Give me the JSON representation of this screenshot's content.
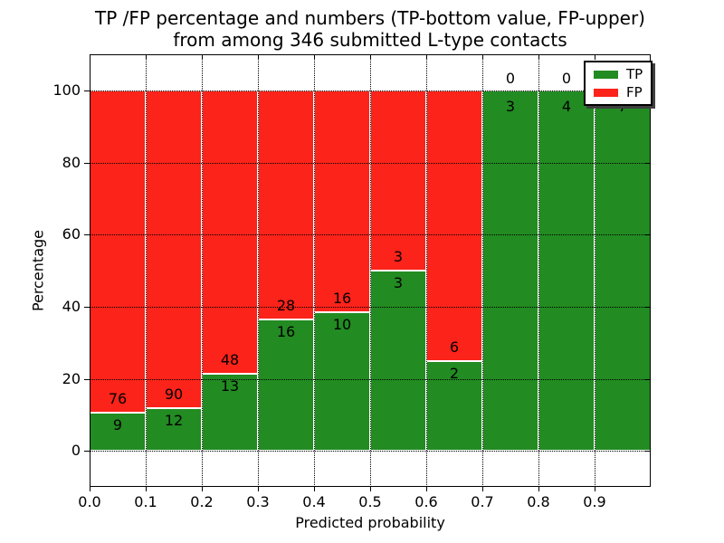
{
  "title": {
    "line1": "TP /FP percentage and numbers (TP-bottom value, FP-upper)",
    "line2": "from among 346 submitted L-type contacts"
  },
  "axes": {
    "xlabel": "Predicted probability",
    "ylabel": "Percentage"
  },
  "legend": {
    "position": "upper right",
    "items": [
      {
        "label": "TP",
        "color": "#228b22"
      },
      {
        "label": "FP",
        "color": "#fb231a"
      }
    ]
  },
  "chart_data": {
    "type": "bar",
    "stacked": true,
    "normalized": "each 0.1 bin stacked to 100 percent; counts shown as labels",
    "title": "TP /FP percentage and numbers (TP-bottom value, FP-upper) from among 346 submitted L-type contacts",
    "xlabel": "Predicted probability",
    "ylabel": "Percentage",
    "xlim": [
      0.0,
      1.0
    ],
    "ylim": [
      -10,
      110
    ],
    "grid": "dotted black, both axes",
    "legend_position": "upper right",
    "xticks": [
      "0.0",
      "0.1",
      "0.2",
      "0.3",
      "0.4",
      "0.5",
      "0.6",
      "0.7",
      "0.8",
      "0.9"
    ],
    "yticks": [
      0,
      20,
      40,
      60,
      80,
      100
    ],
    "categories": [
      "0.0-0.1",
      "0.1-0.2",
      "0.2-0.3",
      "0.3-0.4",
      "0.4-0.5",
      "0.5-0.6",
      "0.6-0.7",
      "0.7-0.8",
      "0.8-0.9",
      "0.9-1.0"
    ],
    "series": [
      {
        "name": "TP",
        "color": "#228b22",
        "counts": [
          9,
          12,
          13,
          16,
          10,
          3,
          2,
          3,
          4,
          7
        ],
        "percent": [
          10.6,
          11.8,
          21.3,
          36.4,
          38.5,
          50.0,
          25.0,
          100.0,
          100.0,
          100.0
        ]
      },
      {
        "name": "FP",
        "color": "#fb231a",
        "counts": [
          76,
          90,
          48,
          28,
          16,
          3,
          6,
          0,
          0,
          0
        ],
        "percent": [
          89.4,
          88.2,
          78.7,
          63.6,
          61.5,
          50.0,
          75.0,
          0.0,
          0.0,
          0.0
        ]
      }
    ],
    "total_contacts": 346
  }
}
